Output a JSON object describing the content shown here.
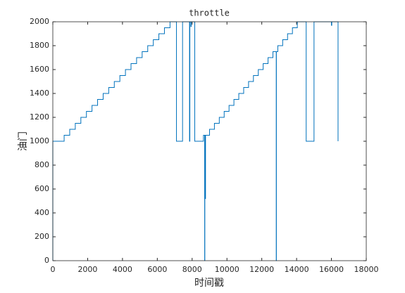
{
  "chart_data": {
    "type": "line",
    "title": "throttle",
    "xlabel": "时间戳",
    "ylabel": "油门",
    "color": "#0072bd",
    "xlim": [
      0,
      18000
    ],
    "xticks": [
      0,
      2000,
      4000,
      6000,
      8000,
      10000,
      12000,
      14000,
      16000,
      18000
    ],
    "ylim": [
      0,
      2000
    ],
    "yticks": [
      0,
      200,
      400,
      600,
      800,
      1000,
      1200,
      1400,
      1600,
      1800,
      2000
    ],
    "grid": false,
    "x": [
      0,
      0,
      650,
      650,
      970,
      970,
      1290,
      1290,
      1610,
      1610,
      1930,
      1930,
      2250,
      2250,
      2570,
      2570,
      2890,
      2890,
      3210,
      3210,
      3530,
      3530,
      3850,
      3850,
      4170,
      4170,
      4490,
      4490,
      4810,
      4810,
      5130,
      5130,
      5450,
      5450,
      5770,
      5770,
      6090,
      6090,
      6410,
      6410,
      6730,
      6730,
      7100,
      7100,
      7450,
      7450,
      7850,
      7850,
      7870,
      7870,
      7930,
      7930,
      7950,
      7950,
      8150,
      8150,
      8650,
      8650,
      8720,
      8720,
      8730,
      8730,
      8760,
      8760,
      8770,
      8770,
      9000,
      9000,
      9280,
      9280,
      9560,
      9560,
      9840,
      9840,
      10120,
      10120,
      10400,
      10400,
      10680,
      10680,
      10960,
      10960,
      11240,
      11240,
      11520,
      11520,
      11800,
      11800,
      12080,
      12080,
      12360,
      12360,
      12640,
      12640,
      12830,
      12830,
      12840,
      12840,
      12920,
      12920,
      13200,
      13200,
      13480,
      13480,
      13760,
      13760,
      14040,
      14040,
      14550,
      14550,
      15000,
      15000,
      16000,
      16000,
      16020,
      16020,
      16380,
      16380
    ],
    "values": [
      0,
      1000,
      1000,
      1050,
      1050,
      1100,
      1100,
      1150,
      1150,
      1200,
      1200,
      1250,
      1250,
      1300,
      1300,
      1350,
      1350,
      1400,
      1400,
      1450,
      1450,
      1500,
      1500,
      1550,
      1550,
      1600,
      1600,
      1650,
      1650,
      1700,
      1700,
      1750,
      1750,
      1800,
      1800,
      1850,
      1850,
      1900,
      1900,
      1950,
      1950,
      2000,
      2000,
      1000,
      1000,
      2000,
      2000,
      1000,
      1000,
      2000,
      2000,
      1960,
      1960,
      2000,
      2000,
      1000,
      1000,
      1050,
      1050,
      0,
      0,
      1050,
      1050,
      520,
      520,
      1050,
      1050,
      1100,
      1100,
      1150,
      1150,
      1200,
      1200,
      1250,
      1250,
      1300,
      1300,
      1350,
      1350,
      1400,
      1400,
      1450,
      1450,
      1500,
      1500,
      1550,
      1550,
      1600,
      1600,
      1650,
      1650,
      1700,
      1700,
      1750,
      1750,
      0,
      0,
      1750,
      1750,
      1800,
      1800,
      1850,
      1850,
      1900,
      1900,
      1950,
      1950,
      2000,
      2000,
      1000,
      1000,
      2000,
      2000,
      1970,
      1970,
      2000,
      2000,
      1000
    ]
  }
}
